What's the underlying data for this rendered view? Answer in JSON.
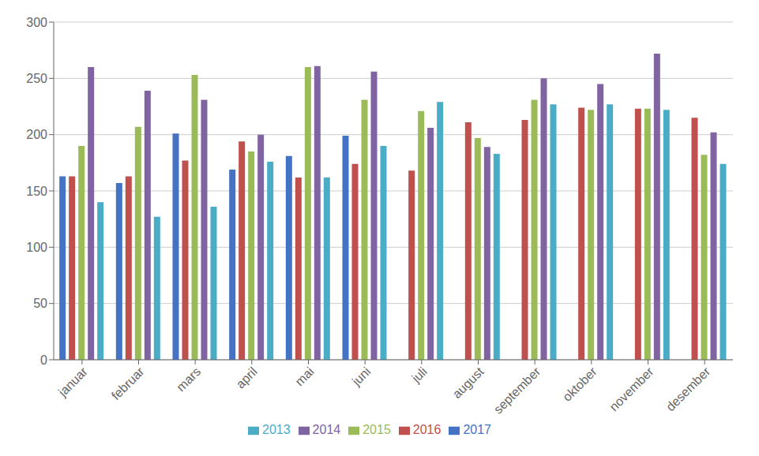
{
  "chart_data": {
    "type": "bar",
    "categories": [
      "januar",
      "februar",
      "mars",
      "april",
      "mai",
      "juni",
      "juli",
      "august",
      "september",
      "oktober",
      "november",
      "desember"
    ],
    "series": [
      {
        "name": "2017",
        "color": "#4472C4",
        "values": [
          163,
          157,
          201,
          169,
          181,
          199,
          null,
          null,
          null,
          null,
          null,
          null
        ]
      },
      {
        "name": "2016",
        "color": "#C0504D",
        "values": [
          163,
          163,
          177,
          194,
          162,
          174,
          168,
          211,
          213,
          224,
          223,
          215
        ]
      },
      {
        "name": "2015",
        "color": "#9BBB59",
        "values": [
          190,
          207,
          253,
          185,
          260,
          231,
          221,
          197,
          231,
          222,
          223,
          182
        ]
      },
      {
        "name": "2014",
        "color": "#8064A2",
        "values": [
          260,
          239,
          231,
          200,
          261,
          256,
          206,
          189,
          250,
          245,
          272,
          202
        ]
      },
      {
        "name": "2013",
        "color": "#4BACC6",
        "values": [
          140,
          127,
          136,
          176,
          162,
          190,
          229,
          183,
          227,
          227,
          222,
          174
        ]
      }
    ],
    "ylim": [
      0,
      300
    ],
    "yticks": [
      0,
      50,
      100,
      150,
      200,
      250,
      300
    ],
    "grid": true,
    "legend": "bottom"
  }
}
